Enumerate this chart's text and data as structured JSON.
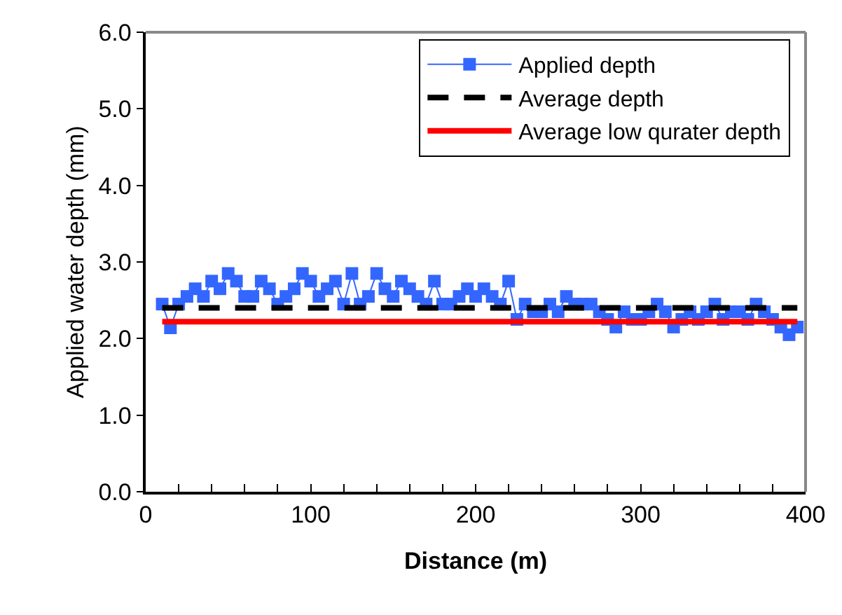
{
  "chart_data": {
    "type": "line",
    "xlabel": "Distance (m)",
    "ylabel": "Applied water depth (mm)",
    "xlim": [
      0,
      400
    ],
    "xticks": [
      0,
      {
        "value": 20,
        "label": null
      },
      {
        "value": 40,
        "label": null
      },
      {
        "value": 60,
        "label": null
      },
      {
        "value": 80,
        "label": null
      },
      100,
      {
        "value": 120,
        "label": null
      },
      {
        "value": 140,
        "label": null
      },
      {
        "value": 160,
        "label": null
      },
      {
        "value": 180,
        "label": null
      },
      200,
      {
        "value": 220,
        "label": null
      },
      {
        "value": 240,
        "label": null
      },
      {
        "value": 260,
        "label": null
      },
      {
        "value": 280,
        "label": null
      },
      300,
      {
        "value": 320,
        "label": null
      },
      {
        "value": 340,
        "label": null
      },
      {
        "value": 360,
        "label": null
      },
      {
        "value": 380,
        "label": null
      },
      400
    ],
    "ylim": [
      0,
      6
    ],
    "yticks": [
      {
        "value": 0,
        "label": "0.0"
      },
      {
        "value": 1,
        "label": "1.0"
      },
      {
        "value": 2,
        "label": "2.0"
      },
      {
        "value": 3,
        "label": "3.0"
      },
      {
        "value": 4,
        "label": "4.0"
      },
      {
        "value": 5,
        "label": "5.0"
      },
      {
        "value": 6,
        "label": "6.0"
      }
    ],
    "legend": "top right",
    "series": [
      {
        "name": "Applied depth",
        "color": "#3366ff",
        "marker": "square",
        "line_style": "solid",
        "x": [
          10,
          15,
          20,
          25,
          30,
          35,
          40,
          45,
          50,
          55,
          60,
          65,
          70,
          75,
          80,
          85,
          90,
          95,
          100,
          105,
          110,
          115,
          120,
          125,
          130,
          135,
          140,
          145,
          150,
          155,
          160,
          165,
          170,
          175,
          180,
          185,
          190,
          195,
          200,
          205,
          210,
          215,
          220,
          225,
          230,
          235,
          240,
          245,
          250,
          255,
          260,
          265,
          270,
          275,
          280,
          285,
          290,
          295,
          300,
          305,
          310,
          315,
          320,
          325,
          330,
          335,
          340,
          345,
          350,
          355,
          360,
          365,
          370,
          375,
          380,
          385,
          390,
          395
        ],
        "values": [
          2.45,
          2.14,
          2.45,
          2.55,
          2.65,
          2.55,
          2.75,
          2.65,
          2.85,
          2.75,
          2.55,
          2.55,
          2.75,
          2.65,
          2.45,
          2.55,
          2.65,
          2.85,
          2.75,
          2.55,
          2.65,
          2.75,
          2.45,
          2.85,
          2.45,
          2.55,
          2.85,
          2.65,
          2.55,
          2.75,
          2.65,
          2.55,
          2.45,
          2.75,
          2.45,
          2.45,
          2.55,
          2.65,
          2.55,
          2.65,
          2.55,
          2.45,
          2.75,
          2.25,
          2.45,
          2.35,
          2.35,
          2.45,
          2.35,
          2.55,
          2.45,
          2.45,
          2.45,
          2.35,
          2.25,
          2.15,
          2.35,
          2.25,
          2.25,
          2.35,
          2.45,
          2.35,
          2.15,
          2.25,
          2.35,
          2.25,
          2.35,
          2.45,
          2.25,
          2.35,
          2.35,
          2.25,
          2.45,
          2.35,
          2.25,
          2.15,
          2.05,
          2.15
        ]
      },
      {
        "name": "Average depth",
        "color": "#000000",
        "marker": "none",
        "line_style": "dashed",
        "x": [
          10,
          395
        ],
        "values": [
          2.4,
          2.4
        ]
      },
      {
        "name": "Average low qurater depth",
        "color": "#ff0000",
        "marker": "none",
        "line_style": "solid",
        "x": [
          10,
          395
        ],
        "values": [
          2.22,
          2.22
        ]
      }
    ]
  }
}
